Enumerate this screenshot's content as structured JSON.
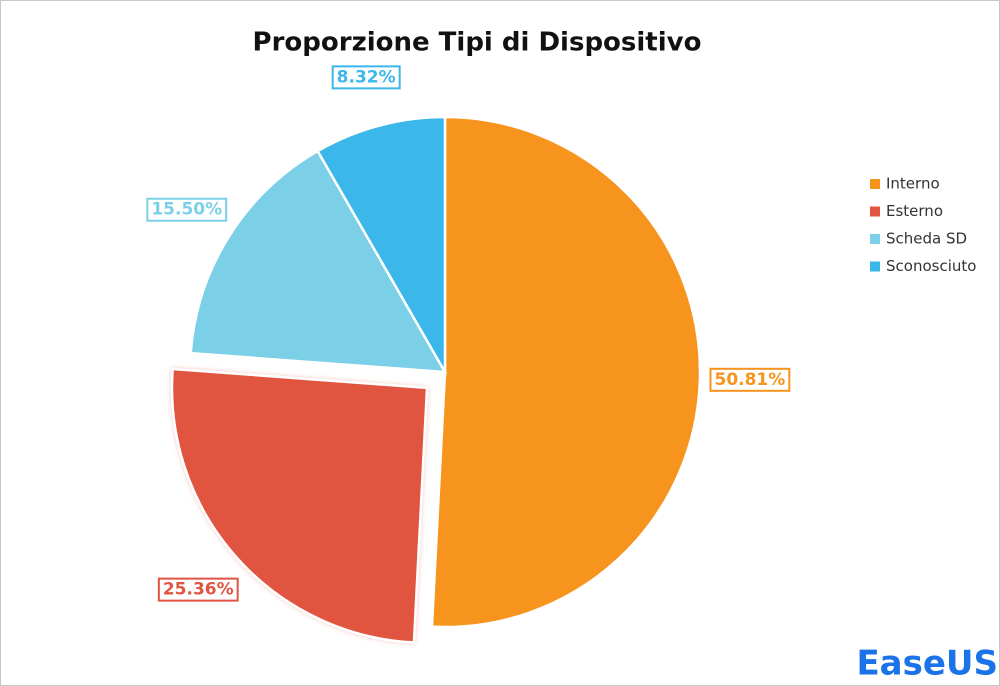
{
  "chart_data": {
    "type": "pie",
    "title": "Proporzione Tipi di Dispositivo",
    "categories": [
      "Interno",
      "Esterno",
      "Scheda SD",
      "Sconosciuto"
    ],
    "values": [
      50.81,
      25.36,
      15.5,
      8.32
    ],
    "value_labels": [
      "50.81%",
      "25.36%",
      "15.50%",
      "8.32%"
    ],
    "colors": [
      "#F7941D",
      "#E15540",
      "#7BD0E8",
      "#3BB7EA"
    ],
    "legend": "right"
  },
  "logo": "EaseUS"
}
